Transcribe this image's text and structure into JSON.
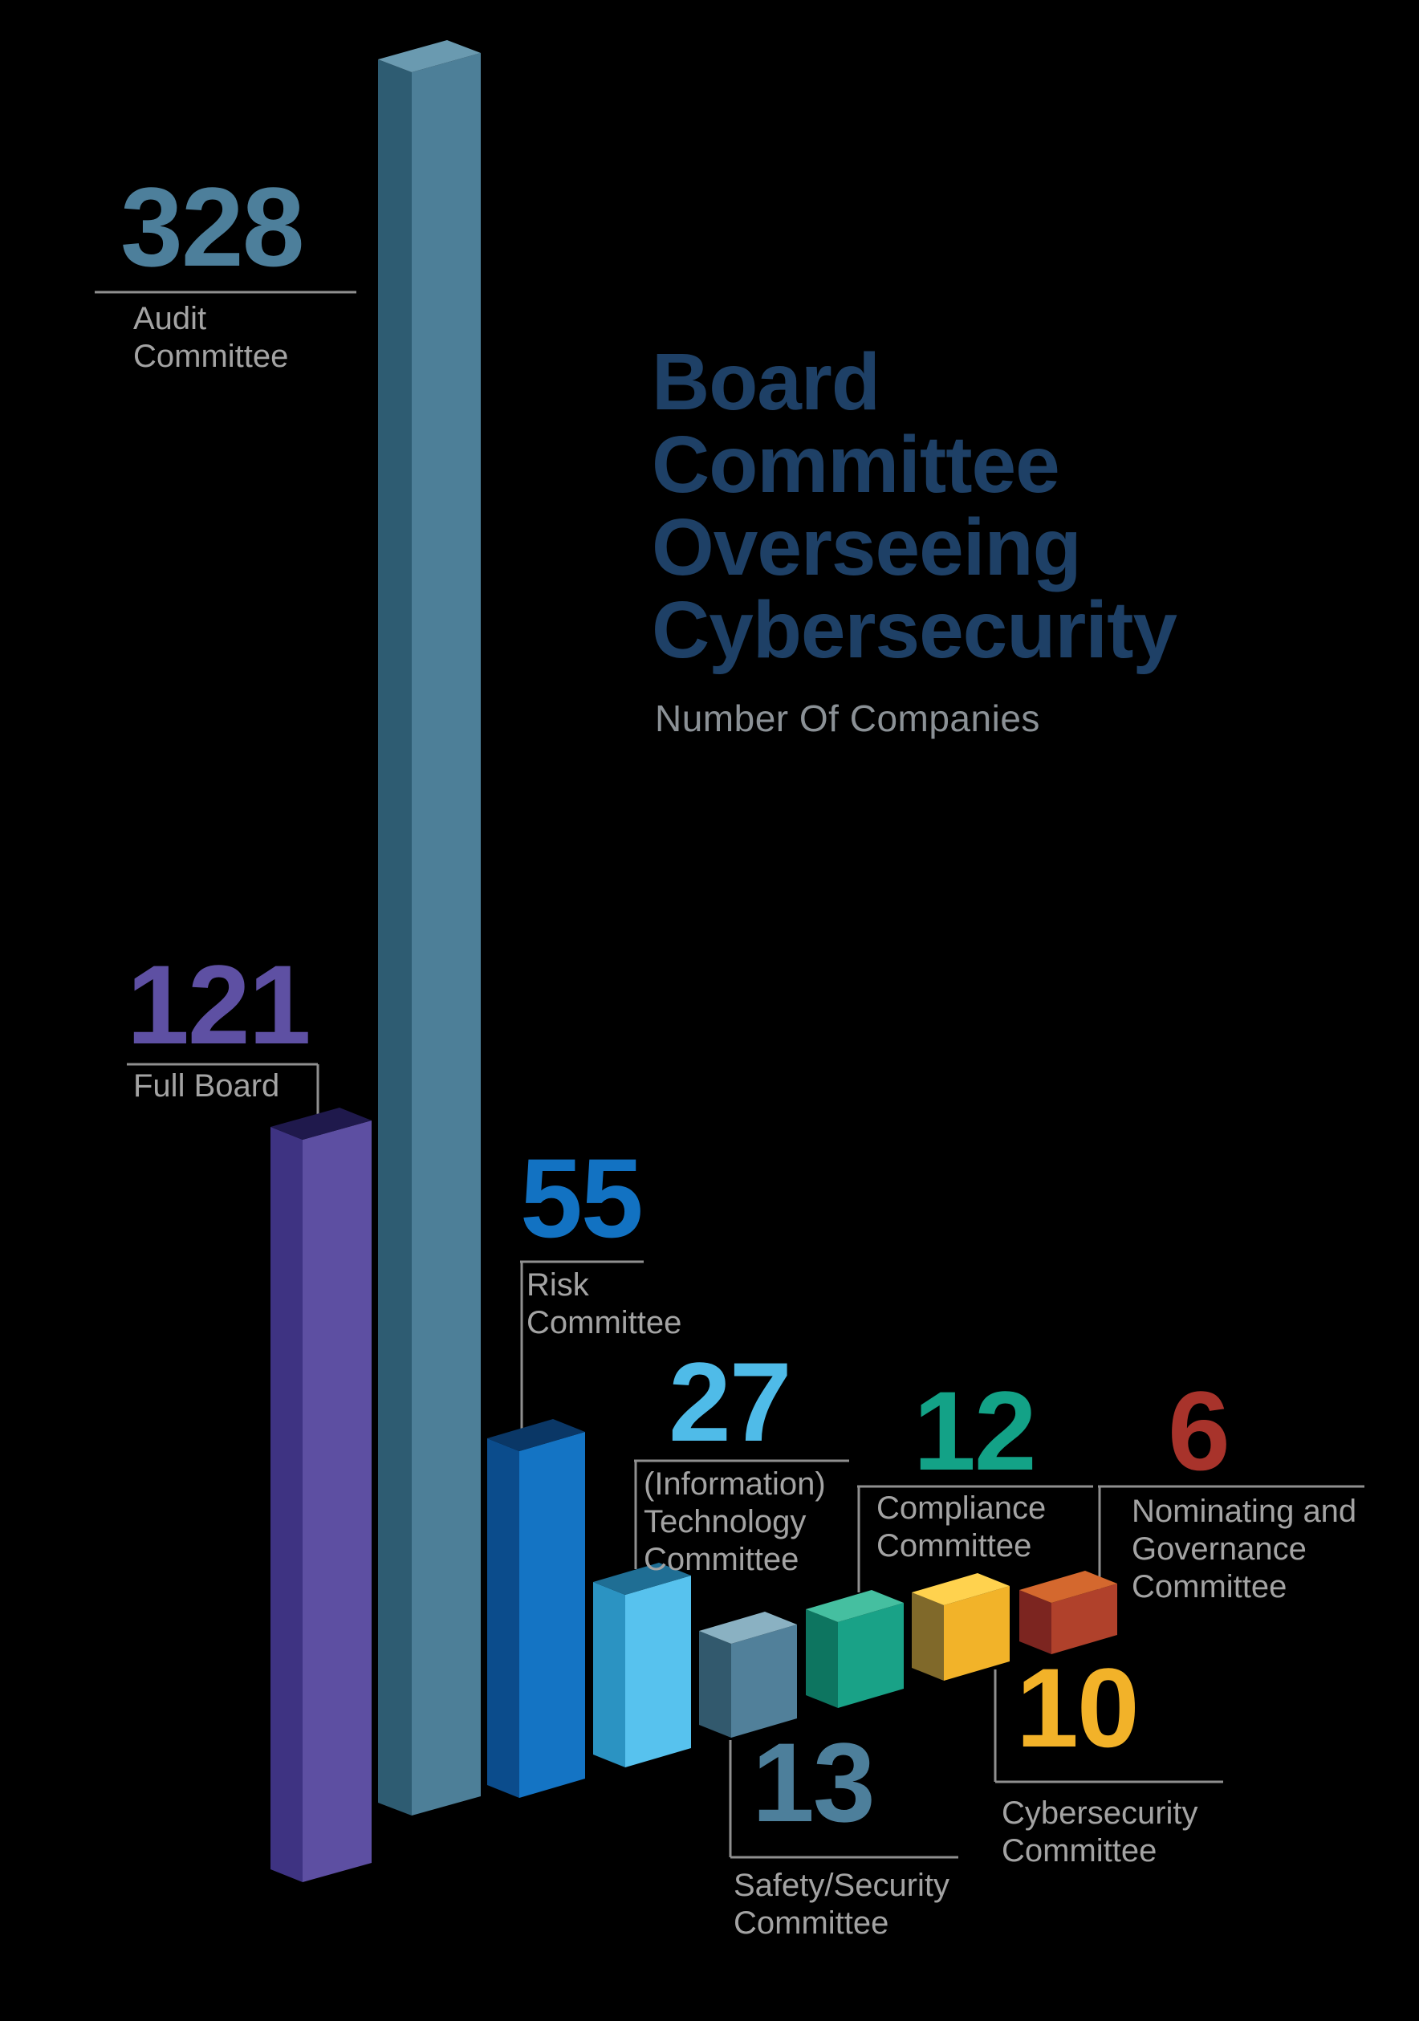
{
  "background": "#000000",
  "title": {
    "lines": [
      "Board",
      "Committee",
      "Overseeing",
      "Cybersecurity"
    ],
    "color": "#1e4066"
  },
  "subtitle": "Number Of Companies",
  "subtitle_color": "#8b9196",
  "label_color": "#a3a3a3",
  "leader_line_color": "#8f8f8f",
  "bars": [
    {
      "name": "Audit Committee",
      "value": "328",
      "label_lines": [
        "Audit",
        "Committee"
      ],
      "number_color": "#4d7f9b",
      "face_dark": "#2e5c72",
      "face_main": "#4d7f98",
      "face_top": "#6a9ab0"
    },
    {
      "name": "Full Board",
      "value": "121",
      "label_lines": [
        "Full Board"
      ],
      "number_color": "#5e50a3",
      "face_dark": "#3e3382",
      "face_main": "#5d4fa2",
      "face_top": "#1f194c"
    },
    {
      "name": "Risk Committee",
      "value": "55",
      "label_lines": [
        "Risk",
        "Committee"
      ],
      "number_color": "#1272c2",
      "face_dark": "#0b4c8c",
      "face_main": "#1474c4",
      "face_top": "#0a3766"
    },
    {
      "name": "(Information) Technology Committee",
      "value": "27",
      "label_lines": [
        "(Information)",
        "Technology",
        "Committee"
      ],
      "number_color": "#4fbbe8",
      "face_dark": "#2b93c2",
      "face_main": "#57c2ee",
      "face_top": "#1f6e94"
    },
    {
      "name": "Safety/Security Committee",
      "value": "13",
      "label_lines": [
        "Safety/Security",
        "Committee"
      ],
      "number_color": "#4d7f9b",
      "face_dark": "#32596d",
      "face_main": "#51809a",
      "face_top": "#8ab1c2"
    },
    {
      "name": "Compliance Committee",
      "value": "12",
      "label_lines": [
        "Compliance",
        "Committee"
      ],
      "number_color": "#13a287",
      "face_dark": "#0d7560",
      "face_main": "#19a287",
      "face_top": "#45bfa0"
    },
    {
      "name": "Cybersecurity Committee",
      "value": "10",
      "label_lines": [
        "Cybersecurity",
        "Committee"
      ],
      "number_color": "#f2b229",
      "face_dark": "#80692a",
      "face_main": "#f2b329",
      "face_top": "#ffd24e"
    },
    {
      "name": "Nominating and Governance Committee",
      "value": "6",
      "label_lines": [
        "Nominating and",
        "Governance",
        "Committee"
      ],
      "number_color": "#a8332b",
      "face_dark": "#7c2520",
      "face_main": "#b0412b",
      "face_top": "#d4682e"
    }
  ],
  "chart_data": {
    "type": "bar",
    "title": "Board Committee Overseeing Cybersecurity",
    "subtitle": "Number Of Companies",
    "categories": [
      "Audit Committee",
      "Full Board",
      "Risk Committee",
      "(Information) Technology Committee",
      "Safety/Security Committee",
      "Compliance Committee",
      "Cybersecurity Committee",
      "Nominating and Governance Committee"
    ],
    "values": [
      328,
      121,
      55,
      27,
      13,
      12,
      10,
      6
    ],
    "xlabel": "",
    "ylabel": "Number Of Companies",
    "legend": false,
    "style": "3d-perspective-columns-on-black"
  }
}
